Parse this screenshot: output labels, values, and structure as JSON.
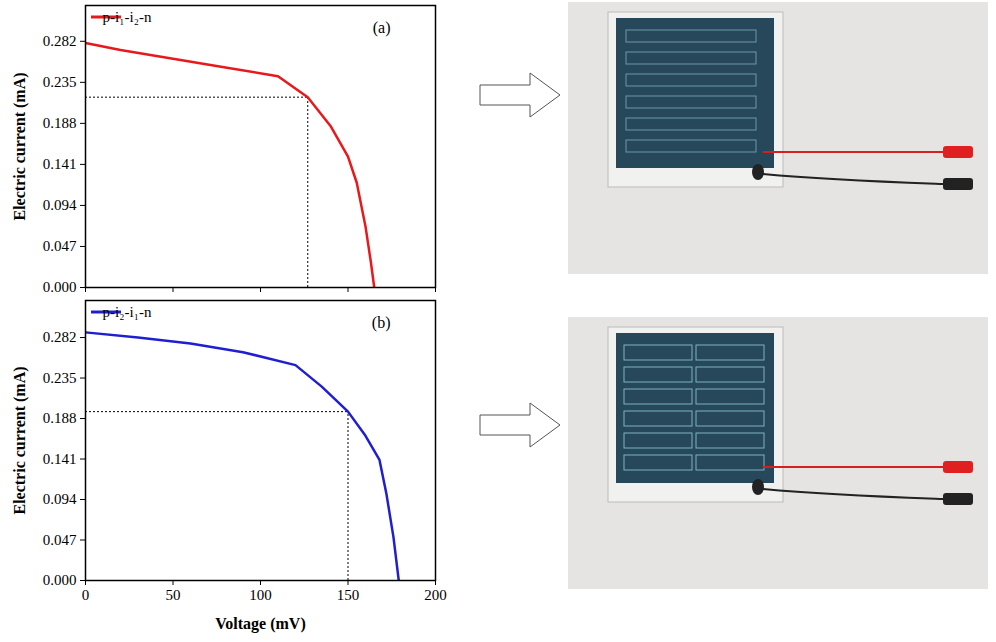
{
  "chart_data": [
    {
      "type": "line",
      "title": "(a)",
      "y_label": "Electric current (mA)",
      "legend": "top-left",
      "tick_labels": "y",
      "xlim": [
        0,
        200
      ],
      "xticks": [
        0,
        50,
        100,
        150,
        200
      ],
      "ylim": [
        0,
        0.323
      ],
      "yticks": [
        {
          "value": 0,
          "label": "0.000"
        },
        0.047,
        0.094,
        0.141,
        0.188,
        0.235,
        0.282
      ],
      "x": [
        0,
        20,
        50,
        80,
        110,
        127,
        140,
        150,
        155,
        160,
        163,
        165
      ],
      "series": [
        {
          "name": "p-i₁-i₂-n",
          "color": "#e8191c",
          "values": [
            0.28,
            0.272,
            0.262,
            0.252,
            0.242,
            0.218,
            0.185,
            0.15,
            0.12,
            0.07,
            0.03,
            0.0
          ]
        }
      ],
      "max_power_point": [
        127,
        0.218
      ]
    },
    {
      "type": "line",
      "title": "(b)",
      "y_label": "Electric current (mA)",
      "x_label": "Voltage (mV)",
      "legend": "top-left",
      "xlim": [
        0,
        200
      ],
      "xticks": [
        0,
        50,
        100,
        150,
        200
      ],
      "ylim": [
        0,
        0.325
      ],
      "yticks": [
        {
          "value": 0,
          "label": "0.000"
        },
        0.047,
        0.094,
        0.141,
        0.188,
        0.235,
        0.282
      ],
      "x": [
        0,
        30,
        60,
        90,
        120,
        135,
        150,
        160,
        168,
        172,
        176,
        179
      ],
      "series": [
        {
          "name": "p-i₂-i₁-n",
          "color": "#1f1fd0",
          "values": [
            0.288,
            0.282,
            0.275,
            0.265,
            0.25,
            0.225,
            0.196,
            0.168,
            0.14,
            0.1,
            0.05,
            0.0
          ]
        }
      ],
      "max_power_point": [
        150,
        0.196
      ]
    }
  ]
}
